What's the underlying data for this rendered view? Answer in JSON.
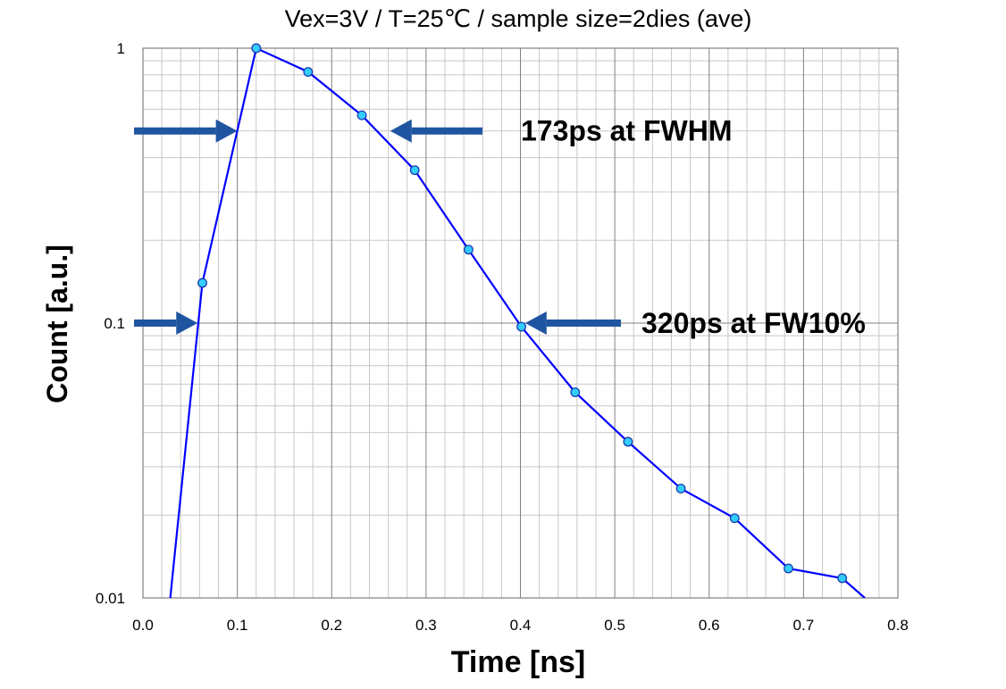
{
  "chart_data": {
    "type": "line",
    "title": "Vex=3V / T=25℃ / sample size=2dies (ave)",
    "xlabel": "Time [ns]",
    "ylabel": "Count [a.u.]",
    "xlim": [
      0.0,
      0.8
    ],
    "ylim": [
      0.01,
      1
    ],
    "yscale": "log",
    "grid": true,
    "x_ticks": [
      "0.0",
      "0.1",
      "0.2",
      "0.3",
      "0.4",
      "0.5",
      "0.6",
      "0.7",
      "0.8"
    ],
    "y_ticks": [
      "0.01",
      "0.1",
      "1"
    ],
    "series": [
      {
        "color": "#0000ff",
        "marker_color": "#33ccff",
        "x": [
          0.029,
          0.063,
          0.12,
          0.175,
          0.232,
          0.288,
          0.345,
          0.401,
          0.458,
          0.514,
          0.57,
          0.627,
          0.684,
          0.741,
          0.765
        ],
        "y": [
          0.01,
          0.14,
          1.0,
          0.82,
          0.57,
          0.36,
          0.185,
          0.097,
          0.056,
          0.037,
          0.025,
          0.0195,
          0.0128,
          0.0118,
          0.01
        ],
        "marker": [
          false,
          true,
          true,
          true,
          true,
          true,
          true,
          true,
          true,
          true,
          true,
          true,
          true,
          true,
          false
        ]
      }
    ],
    "annotations": [
      {
        "text": "173ps at FWHM",
        "y": 0.5,
        "x_left": 0.1,
        "x_right": 0.262
      },
      {
        "text": "320ps at FW10%",
        "y": 0.1,
        "x_left": 0.058,
        "x_right": 0.405
      }
    ]
  }
}
